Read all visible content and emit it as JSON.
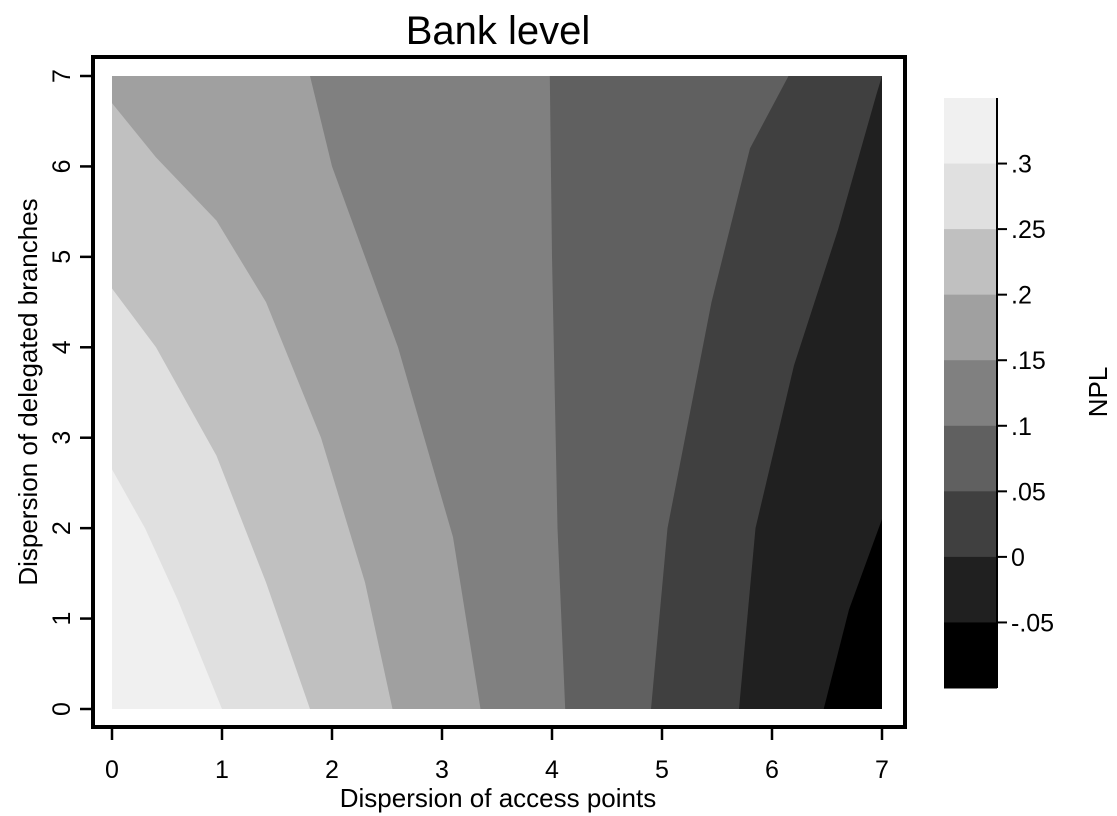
{
  "chart_data": {
    "type": "heatmap",
    "subtype": "filled-contour",
    "title": "Bank level",
    "xlabel": "Dispersion of access points",
    "ylabel": "Dispersion of delegated branches",
    "xlim": [
      0,
      7
    ],
    "ylim": [
      0,
      7
    ],
    "xticks": [
      "0",
      "1",
      "2",
      "3",
      "4",
      "5",
      "6",
      "7"
    ],
    "yticks": [
      "0",
      "1",
      "2",
      "3",
      "4",
      "5",
      "6",
      "7"
    ],
    "grid": false,
    "colorbar": {
      "label": "NPL",
      "ticks": [
        ".3",
        ".25",
        ".2",
        ".15",
        ".1",
        ".05",
        "0",
        "-.05"
      ],
      "levels": [
        {
          "range": "> .3",
          "color": "#f0f0f0"
        },
        {
          "range": ".25 – .3",
          "color": "#e0e0e0"
        },
        {
          "range": ".2 – .25",
          "color": "#c0c0c0"
        },
        {
          "range": ".15 – .2",
          "color": "#a0a0a0"
        },
        {
          "range": ".1 – .15",
          "color": "#808080"
        },
        {
          "range": ".05 – .1",
          "color": "#606060"
        },
        {
          "range": "0 – .05",
          "color": "#404040"
        },
        {
          "range": "-.05 – 0",
          "color": "#202020"
        },
        {
          "range": "< -.05",
          "color": "#000000"
        }
      ]
    },
    "contour_boundaries": [
      {
        "between": [
          "#f0f0f0",
          "#e0e0e0"
        ],
        "points": [
          [
            1.0,
            0
          ],
          [
            0.6,
            1.2
          ],
          [
            0.3,
            2.0
          ],
          [
            0,
            2.65
          ]
        ]
      },
      {
        "between": [
          "#e0e0e0",
          "#c0c0c0"
        ],
        "points": [
          [
            1.8,
            0
          ],
          [
            1.4,
            1.4
          ],
          [
            0.95,
            2.8
          ],
          [
            0.4,
            4.0
          ],
          [
            0,
            4.65
          ]
        ]
      },
      {
        "between": [
          "#c0c0c0",
          "#a0a0a0"
        ],
        "points": [
          [
            2.55,
            0
          ],
          [
            2.3,
            1.4
          ],
          [
            1.9,
            3.0
          ],
          [
            1.4,
            4.5
          ],
          [
            0.95,
            5.4
          ],
          [
            0.4,
            6.1
          ],
          [
            0,
            6.7
          ]
        ]
      },
      {
        "between": [
          "#a0a0a0",
          "#808080"
        ],
        "points": [
          [
            3.35,
            0
          ],
          [
            3.1,
            1.9
          ],
          [
            2.6,
            4.0
          ],
          [
            2.0,
            6.0
          ],
          [
            1.8,
            7.0
          ]
        ]
      },
      {
        "between": [
          "#808080",
          "#606060"
        ],
        "points": [
          [
            4.12,
            0
          ],
          [
            4.05,
            2.0
          ],
          [
            4.0,
            5.0
          ],
          [
            3.98,
            7.0
          ]
        ]
      },
      {
        "between": [
          "#606060",
          "#404040"
        ],
        "points": [
          [
            4.9,
            0
          ],
          [
            5.05,
            2.0
          ],
          [
            5.45,
            4.5
          ],
          [
            5.8,
            6.2
          ],
          [
            6.15,
            7.0
          ]
        ]
      },
      {
        "between": [
          "#404040",
          "#202020"
        ],
        "points": [
          [
            5.7,
            0
          ],
          [
            5.85,
            2.0
          ],
          [
            6.2,
            3.8
          ],
          [
            6.6,
            5.3
          ],
          [
            6.95,
            6.8
          ],
          [
            7.0,
            7.0
          ]
        ]
      },
      {
        "between": [
          "#202020",
          "#000000"
        ],
        "points": [
          [
            6.47,
            0
          ],
          [
            6.7,
            1.1
          ],
          [
            7.0,
            2.1
          ]
        ]
      }
    ]
  }
}
